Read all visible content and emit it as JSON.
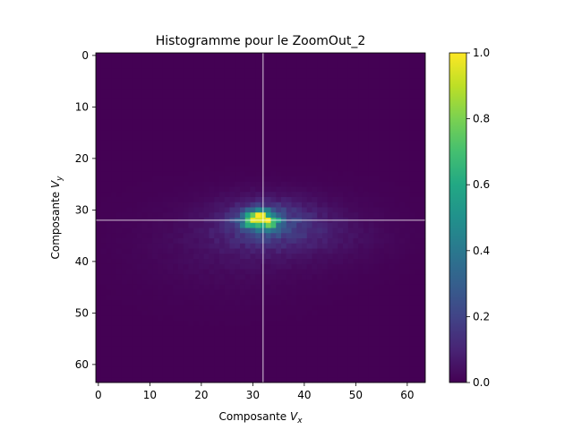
{
  "chart_data": {
    "type": "heatmap",
    "title": "Histogramme pour le ZoomOut_2",
    "xlabel_prefix": "Composante ",
    "xlabel_var": "V",
    "xlabel_sub": "x",
    "ylabel_prefix": "Composante ",
    "ylabel_var": "V",
    "ylabel_sub": "y",
    "grid_size": 64,
    "xlim": [
      0,
      63
    ],
    "ylim": [
      63,
      0
    ],
    "x_ticks": [
      "0",
      "10",
      "20",
      "30",
      "40",
      "50",
      "60"
    ],
    "y_ticks": [
      "0",
      "10",
      "20",
      "30",
      "40",
      "50",
      "60"
    ],
    "colorbar_ticks": [
      "0.0",
      "0.2",
      "0.4",
      "0.6",
      "0.8",
      "1.0"
    ],
    "colormap": "viridis",
    "value_range": [
      0.0,
      1.0
    ],
    "crosshair": {
      "x": 32,
      "y": 32,
      "color": "#ffffff"
    },
    "peak": {
      "x": 31.5,
      "y": 31.5,
      "value": 1.0
    },
    "components": [
      {
        "x": 31.5,
        "y": 32,
        "sx": 2.3,
        "sy": 1.3,
        "amp": 0.78
      },
      {
        "x": 33,
        "y": 32.5,
        "sx": 6,
        "sy": 3,
        "amp": 0.17
      },
      {
        "x": 35,
        "y": 34,
        "sx": 12,
        "sy": 4.5,
        "amp": 0.05
      },
      {
        "x": 25,
        "y": 38,
        "sx": 12,
        "sy": 6,
        "amp": 0.025
      },
      {
        "x": 45,
        "y": 35,
        "sx": 8,
        "sy": 3,
        "amp": 0.02
      }
    ]
  }
}
